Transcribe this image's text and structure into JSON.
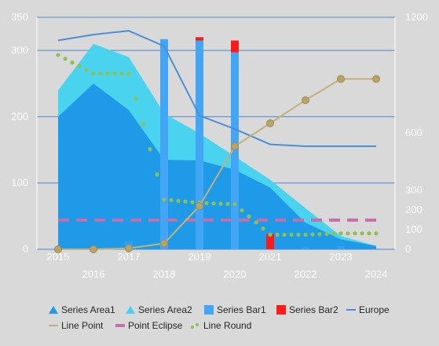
{
  "colors": {
    "background": "#d9d9d9",
    "grid": "#4a86d8",
    "series_area1": "#1e9ae8",
    "series_area2": "#4ad3ee",
    "series_bar1": "#42a5f5",
    "series_bar2": "#ff1a1a",
    "europe": "#4a90d9",
    "line_point": "#c2b07a",
    "point_eclipse": "#c370aa",
    "line_round": "#8cc251"
  },
  "chart_data": {
    "type": "combo",
    "x": [
      "2015",
      "2016",
      "2017",
      "2018",
      "2019",
      "2020",
      "2021",
      "2022",
      "2023",
      "2024"
    ],
    "left_axis": {
      "ylim": [
        0,
        350
      ],
      "ticks": [
        "0",
        "100",
        "200",
        "300",
        "350"
      ]
    },
    "right_axis": {
      "ylim": [
        0,
        1200
      ],
      "ticks": [
        "0",
        "100",
        "200",
        "300",
        "600",
        "1200"
      ]
    },
    "grid": true,
    "legend_position": "bottom",
    "series": [
      {
        "name": "Series Area1",
        "kind": "area",
        "axis": "left",
        "values": [
          200,
          250,
          210,
          135,
          134,
          120,
          93,
          40,
          15,
          5
        ]
      },
      {
        "name": "Series Area2",
        "kind": "area",
        "axis": "left",
        "values": [
          240,
          310,
          290,
          205,
          175,
          140,
          105,
          62,
          20,
          5
        ]
      },
      {
        "name": "Series Bar1",
        "kind": "bar",
        "axis": "left",
        "values": [
          1,
          1,
          12,
          317,
          315,
          297,
          1,
          3,
          5,
          1
        ]
      },
      {
        "name": "Series Bar2",
        "kind": "bar",
        "axis": "left",
        "values": [
          0,
          0,
          0,
          0,
          5,
          18,
          23,
          0,
          0,
          0
        ]
      },
      {
        "name": "Europe",
        "kind": "line",
        "axis": "right",
        "values": [
          1080,
          1110,
          1130,
          1050,
          690,
          620,
          540,
          530,
          530,
          530
        ]
      },
      {
        "name": "Line Point",
        "kind": "line-markers",
        "axis": "right",
        "values": [
          0,
          0,
          5,
          30,
          220,
          530,
          650,
          770,
          880,
          880
        ]
      },
      {
        "name": "Point Eclipse",
        "kind": "dashed",
        "axis": "left",
        "values": [
          44,
          44,
          44,
          44,
          44,
          44,
          44,
          44,
          44,
          44
        ]
      },
      {
        "name": "Line Round",
        "kind": "dotted",
        "axis": "left",
        "values": [
          293,
          265,
          265,
          75,
          70,
          68,
          22,
          22,
          24,
          24
        ]
      }
    ]
  }
}
